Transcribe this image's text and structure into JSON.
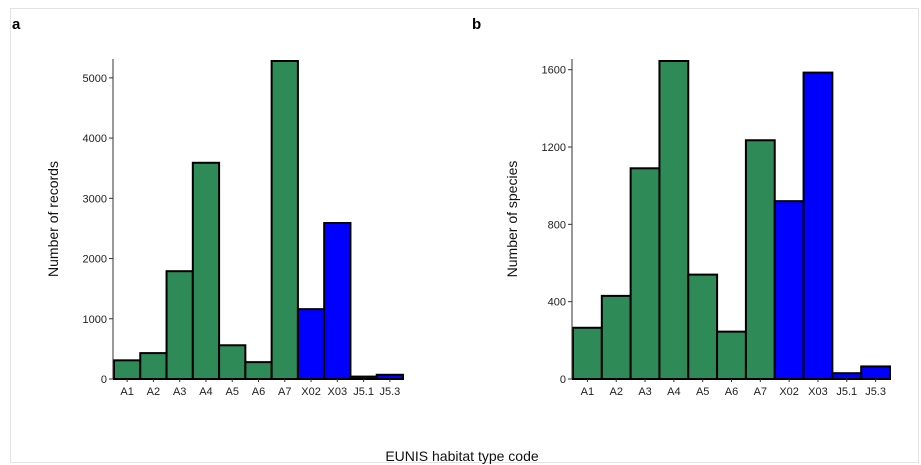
{
  "chart_data": [
    {
      "type": "bar",
      "panel_label": "a",
      "ylabel": "Number of records",
      "categories": [
        "A1",
        "A2",
        "A3",
        "A4",
        "A5",
        "A6",
        "A7",
        "X02",
        "X03",
        "J5.1",
        "J5.3"
      ],
      "values": [
        310,
        430,
        1790,
        3590,
        560,
        280,
        5280,
        1160,
        2590,
        40,
        70
      ],
      "bar_colors": [
        "#2e8b57",
        "#2e8b57",
        "#2e8b57",
        "#2e8b57",
        "#2e8b57",
        "#2e8b57",
        "#2e8b57",
        "#0000ff",
        "#0000ff",
        "#0000ff",
        "#0000ff"
      ],
      "yticks": [
        0,
        1000,
        2000,
        3000,
        4000,
        5000
      ],
      "ylim": [
        0,
        5280
      ],
      "grid": false
    },
    {
      "type": "bar",
      "panel_label": "b",
      "ylabel": "Number of species",
      "categories": [
        "A1",
        "A2",
        "A3",
        "A4",
        "A5",
        "A6",
        "A7",
        "X02",
        "X03",
        "J5.1",
        "J5.3"
      ],
      "values": [
        265,
        430,
        1090,
        1645,
        540,
        245,
        1235,
        920,
        1585,
        30,
        65
      ],
      "bar_colors": [
        "#2e8b57",
        "#2e8b57",
        "#2e8b57",
        "#2e8b57",
        "#2e8b57",
        "#2e8b57",
        "#2e8b57",
        "#0000ff",
        "#0000ff",
        "#0000ff",
        "#0000ff"
      ],
      "yticks": [
        0,
        400,
        800,
        1200,
        1600
      ],
      "ylim": [
        0,
        1645
      ],
      "grid": false
    }
  ],
  "shared_xlabel": "EUNIS habitat type code"
}
